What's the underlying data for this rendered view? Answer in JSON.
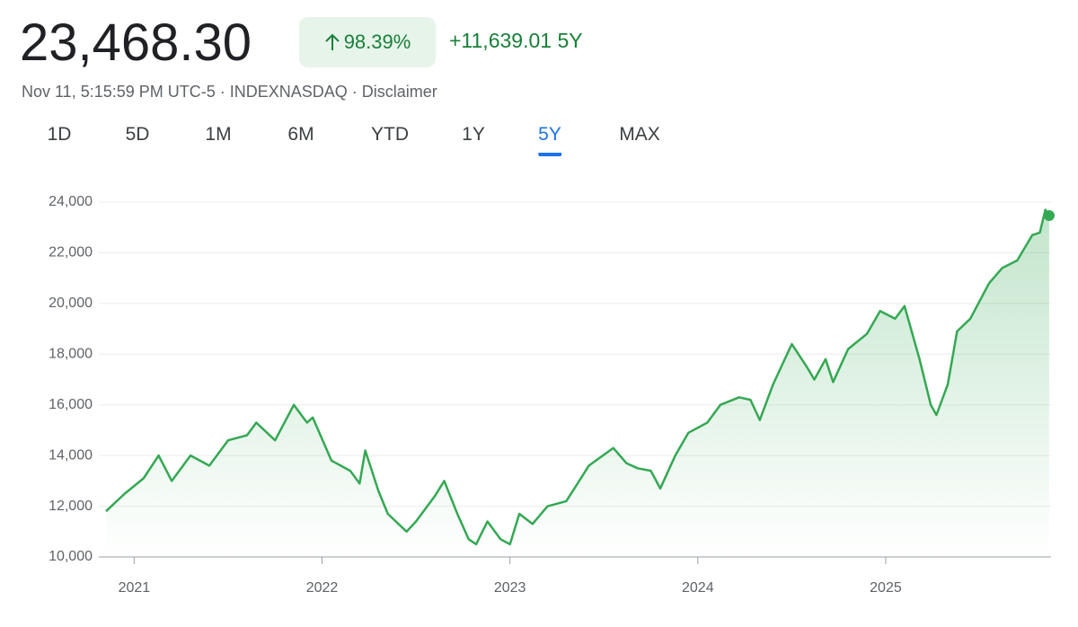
{
  "header": {
    "price": "23,468.30",
    "change_percent": "98.39%",
    "change_value": "+11,639.01",
    "period": "5Y",
    "meta": "Nov 11, 5:15:59 PM UTC-5 · INDEXNASDAQ · Disclaimer",
    "tabs": [
      "1D",
      "5D",
      "1M",
      "6M",
      "YTD",
      "1Y",
      "5Y",
      "MAX"
    ],
    "selected_tab": 6
  },
  "chart_data": {
    "type": "line",
    "color": "#34a853",
    "x": [
      2020.85,
      2020.95,
      2021.05,
      2021.13,
      2021.2,
      2021.3,
      2021.4,
      2021.5,
      2021.6,
      2021.65,
      2021.75,
      2021.85,
      2021.92,
      2021.95,
      2022.05,
      2022.15,
      2022.2,
      2022.23,
      2022.3,
      2022.35,
      2022.45,
      2022.5,
      2022.6,
      2022.65,
      2022.72,
      2022.78,
      2022.82,
      2022.88,
      2022.95,
      2023.0,
      2023.05,
      2023.12,
      2023.2,
      2023.3,
      2023.42,
      2023.55,
      2023.62,
      2023.68,
      2023.75,
      2023.8,
      2023.88,
      2023.95,
      2024.05,
      2024.12,
      2024.22,
      2024.28,
      2024.33,
      2024.4,
      2024.5,
      2024.58,
      2024.62,
      2024.68,
      2024.72,
      2024.8,
      2024.9,
      2024.97,
      2025.05,
      2025.1,
      2025.18,
      2025.24,
      2025.27,
      2025.33,
      2025.38,
      2025.45,
      2025.55,
      2025.62,
      2025.7,
      2025.78,
      2025.82,
      2025.85,
      2025.87
    ],
    "values": [
      11800,
      12500,
      13100,
      14000,
      13000,
      14000,
      13600,
      14600,
      14800,
      15300,
      14600,
      16000,
      15300,
      15500,
      13800,
      13400,
      12900,
      14200,
      12600,
      11700,
      11000,
      11400,
      12400,
      13000,
      11700,
      10700,
      10500,
      11400,
      10700,
      10500,
      11700,
      11300,
      12000,
      12200,
      13600,
      14300,
      13700,
      13500,
      13400,
      12700,
      14000,
      14900,
      15300,
      16000,
      16300,
      16200,
      15400,
      16800,
      18400,
      17500,
      17000,
      17800,
      16900,
      18200,
      18800,
      19700,
      19400,
      19900,
      17800,
      16000,
      15600,
      16800,
      18900,
      19400,
      20800,
      21400,
      21700,
      22700,
      22800,
      23700,
      23468.3
    ],
    "xlim": [
      2020.85,
      2025.88
    ],
    "xticks": [
      2021,
      2022,
      2023,
      2024,
      2025
    ],
    "ylim": [
      10000,
      24000
    ],
    "yticks": [
      {
        "value": 10000,
        "label": "10,000"
      },
      {
        "value": 12000,
        "label": "12,000"
      },
      {
        "value": 14000,
        "label": "14,000"
      },
      {
        "value": 16000,
        "label": "16,000"
      },
      {
        "value": 18000,
        "label": "18,000"
      },
      {
        "value": 20000,
        "label": "20,000"
      },
      {
        "value": 22000,
        "label": "22,000"
      },
      {
        "value": 24000,
        "label": "24,000"
      }
    ],
    "grid": true
  }
}
